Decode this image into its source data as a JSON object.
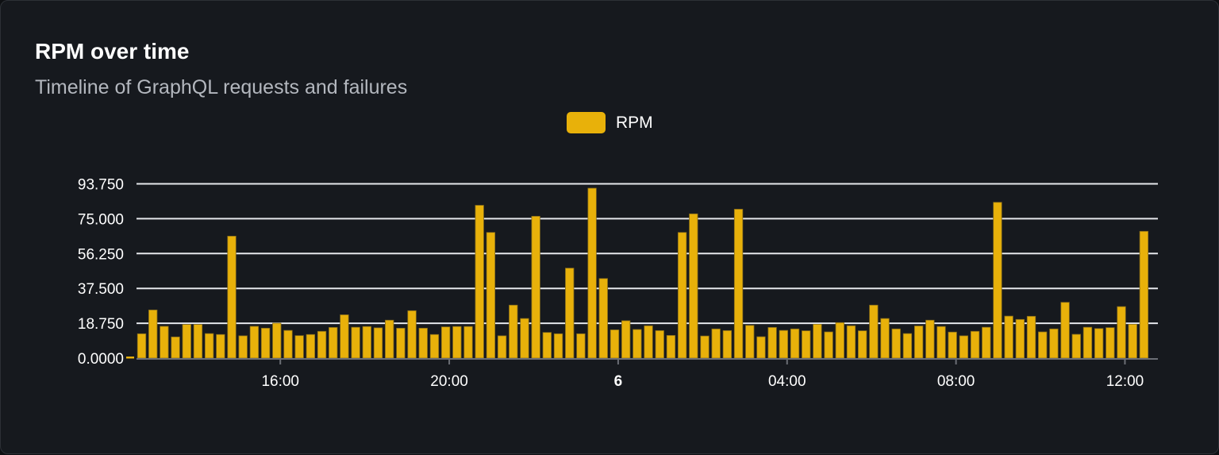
{
  "header": {
    "title": "RPM over time",
    "subtitle": "Timeline of GraphQL requests and failures"
  },
  "colors": {
    "bar": "#e8b10a",
    "bar_border": "#8a6e1a",
    "grid": "#e5e7eb",
    "axis": "#6b6e75",
    "background": "#16191e"
  },
  "chart_data": {
    "type": "bar",
    "title": "RPM over time",
    "subtitle": "Timeline of GraphQL requests and failures",
    "legend": {
      "position": "top-center",
      "entries": [
        "RPM"
      ]
    },
    "grid": true,
    "ylim": [
      0,
      93.75
    ],
    "y_ticks": [
      "0.0000",
      "18.750",
      "37.500",
      "56.250",
      "75.000",
      "93.750"
    ],
    "x_start": "12:43",
    "interval_minutes": 16,
    "x_ticks": [
      {
        "label": "16:00",
        "minutes_from_start": 197,
        "bold": false
      },
      {
        "label": "20:00",
        "minutes_from_start": 437,
        "bold": false
      },
      {
        "label": "6",
        "minutes_from_start": 677,
        "bold": true
      },
      {
        "label": "04:00",
        "minutes_from_start": 917,
        "bold": false
      },
      {
        "label": "08:00",
        "minutes_from_start": 1157,
        "bold": false
      },
      {
        "label": "12:00",
        "minutes_from_start": 1397,
        "bold": false
      }
    ],
    "series": [
      {
        "name": "RPM",
        "values": [
          13.1,
          25.9,
          17.1,
          11.4,
          18.1,
          18.1,
          13.2,
          12.7,
          65.6,
          12.0,
          17.1,
          16.1,
          18.8,
          14.9,
          12.1,
          12.7,
          14.4,
          16.5,
          23.3,
          16.6,
          17.0,
          16.3,
          20.4,
          16.1,
          25.5,
          16.1,
          12.7,
          16.8,
          17.0,
          17.0,
          82.2,
          67.6,
          12.0,
          28.5,
          21.3,
          76.3,
          13.8,
          13.1,
          48.4,
          13.1,
          91.4,
          42.8,
          15.2,
          20.1,
          15.4,
          17.4,
          14.8,
          12.2,
          67.6,
          77.6,
          11.9,
          15.7,
          14.8,
          80.1,
          17.6,
          11.5,
          16.5,
          14.9,
          15.7,
          14.7,
          18.2,
          14.1,
          19.1,
          17.4,
          14.7,
          28.5,
          21.3,
          15.7,
          13.2,
          17.3,
          20.4,
          17.0,
          14.0,
          12.0,
          14.4,
          16.6,
          83.8,
          22.6,
          20.8,
          22.5,
          14.1,
          15.7,
          30.0,
          12.8,
          16.6,
          15.9,
          16.4,
          27.7,
          18.2,
          68.2
        ]
      }
    ]
  }
}
